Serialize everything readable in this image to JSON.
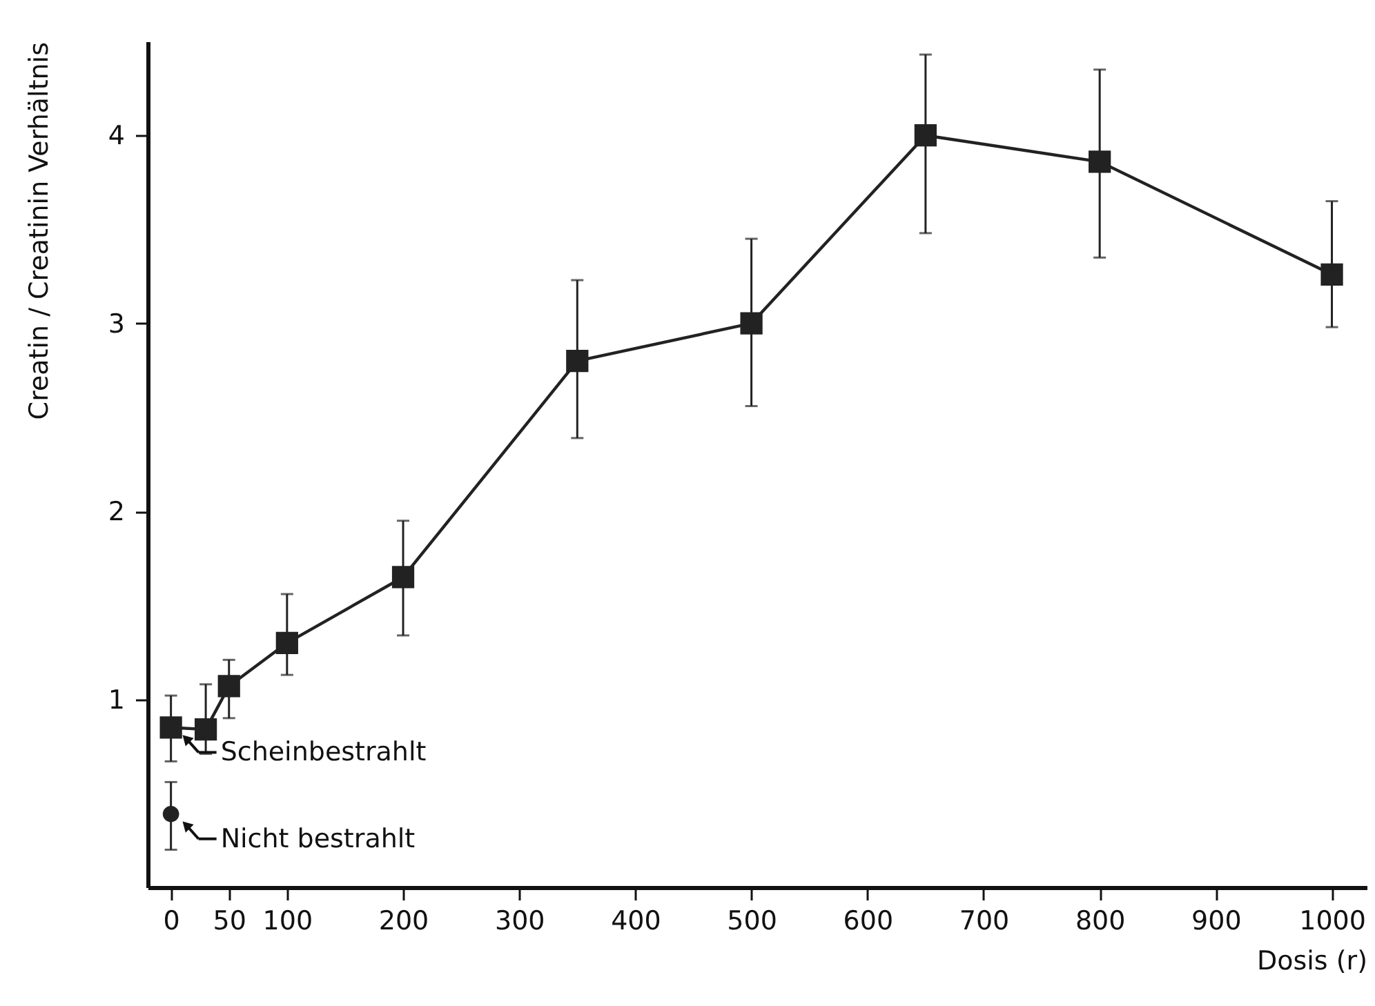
{
  "chart_data": {
    "type": "line",
    "xlabel": "Dosis (r)",
    "ylabel": "Creatin / Creatinin Verhältnis",
    "x": [
      0,
      30,
      50,
      100,
      200,
      350,
      500,
      650,
      800,
      1000
    ],
    "xlim": [
      -20,
      1030
    ],
    "xticks": [
      0,
      50,
      100,
      200,
      300,
      400,
      500,
      600,
      700,
      800,
      900,
      1000
    ],
    "ylim": [
      0,
      4.5
    ],
    "yticks": [
      1,
      2,
      3,
      4
    ],
    "marker": "square",
    "line_style": "solid",
    "series": [
      {
        "color": "#222222",
        "values": [
          0.85,
          0.84,
          1.07,
          1.3,
          1.65,
          2.8,
          3.0,
          4.0,
          3.86,
          3.26
        ],
        "errors": [
          [
            0.67,
            1.02
          ],
          [
            0.71,
            1.08
          ],
          [
            0.9,
            1.21
          ],
          [
            1.13,
            1.56
          ],
          [
            1.34,
            1.95
          ],
          [
            2.39,
            3.23
          ],
          [
            2.56,
            3.45
          ],
          [
            3.48,
            4.43
          ],
          [
            3.35,
            4.35
          ],
          [
            2.98,
            3.65
          ]
        ]
      },
      {
        "type": "scatter",
        "marker": "circle",
        "x": [
          0
        ],
        "color": "#222222",
        "values": [
          0.39
        ],
        "errors": [
          [
            0.2,
            0.56
          ]
        ]
      }
    ],
    "annotations": [
      {
        "text": "Scheinbestrahlt",
        "x": 0,
        "y": 0.85
      },
      {
        "text": "Nicht bestrahlt",
        "x": 0,
        "y": 0.39
      }
    ]
  }
}
